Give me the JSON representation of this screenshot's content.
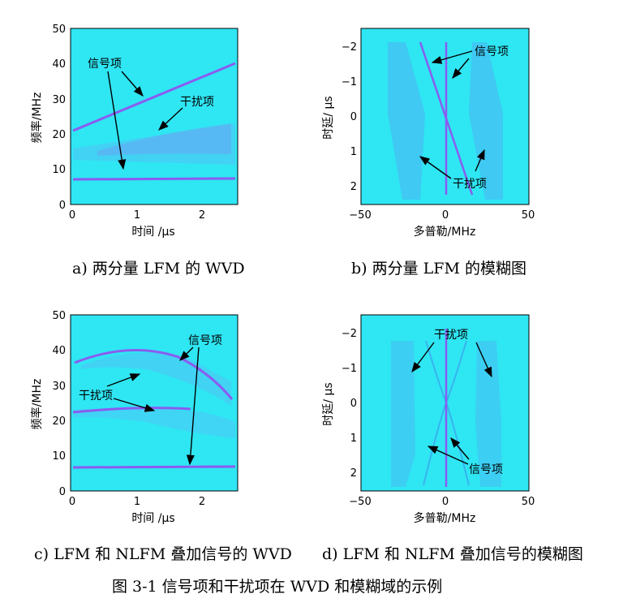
{
  "colors": {
    "field": "#2fe6f3",
    "frame": "#000000",
    "signal": "#8a5cf0",
    "arrow": "#000000"
  },
  "panels": [
    {
      "id": "a",
      "plot_type": "wvd",
      "caption": "a) 两分量 LFM 的 WVD",
      "xlabel": "时间 /μs",
      "ylabel": "频率/MHz",
      "xticks": [
        "0",
        "1",
        "2"
      ],
      "yticks": [
        "0",
        "10",
        "20",
        "30",
        "40",
        "50"
      ],
      "annotations": [
        "信号项",
        "干扰项"
      ]
    },
    {
      "id": "b",
      "plot_type": "ambiguity",
      "caption": "b) 两分量 LFM 的模糊图",
      "xlabel": "多普勒/MHz",
      "ylabel": "时延/ μs",
      "xticks": [
        "−50",
        "0",
        "50"
      ],
      "yticks": [
        "−2",
        "−1",
        "0",
        "1",
        "2"
      ],
      "annotations": [
        "信号项",
        "干扰项"
      ]
    },
    {
      "id": "c",
      "plot_type": "wvd",
      "caption": "c) LFM 和 NLFM 叠加信号的 WVD",
      "xlabel": "时间 /μs",
      "ylabel": "频率/MHz",
      "xticks": [
        "0",
        "1",
        "2"
      ],
      "yticks": [
        "0",
        "10",
        "20",
        "30",
        "40",
        "50"
      ],
      "annotations": [
        "信号项",
        "干扰项"
      ]
    },
    {
      "id": "d",
      "plot_type": "ambiguity",
      "caption": "d) LFM 和 NLFM 叠加信号的模糊图",
      "xlabel": "多普勒/MHz",
      "ylabel": "时延/ μs",
      "xticks": [
        "−50",
        "0",
        "50"
      ],
      "yticks": [
        "−2",
        "−1",
        "0",
        "1",
        "2"
      ],
      "annotations": [
        "干扰项",
        "信号项"
      ]
    }
  ],
  "figure_caption": "图 3-1 信号项和干扰项在 WVD 和模糊域的示例"
}
